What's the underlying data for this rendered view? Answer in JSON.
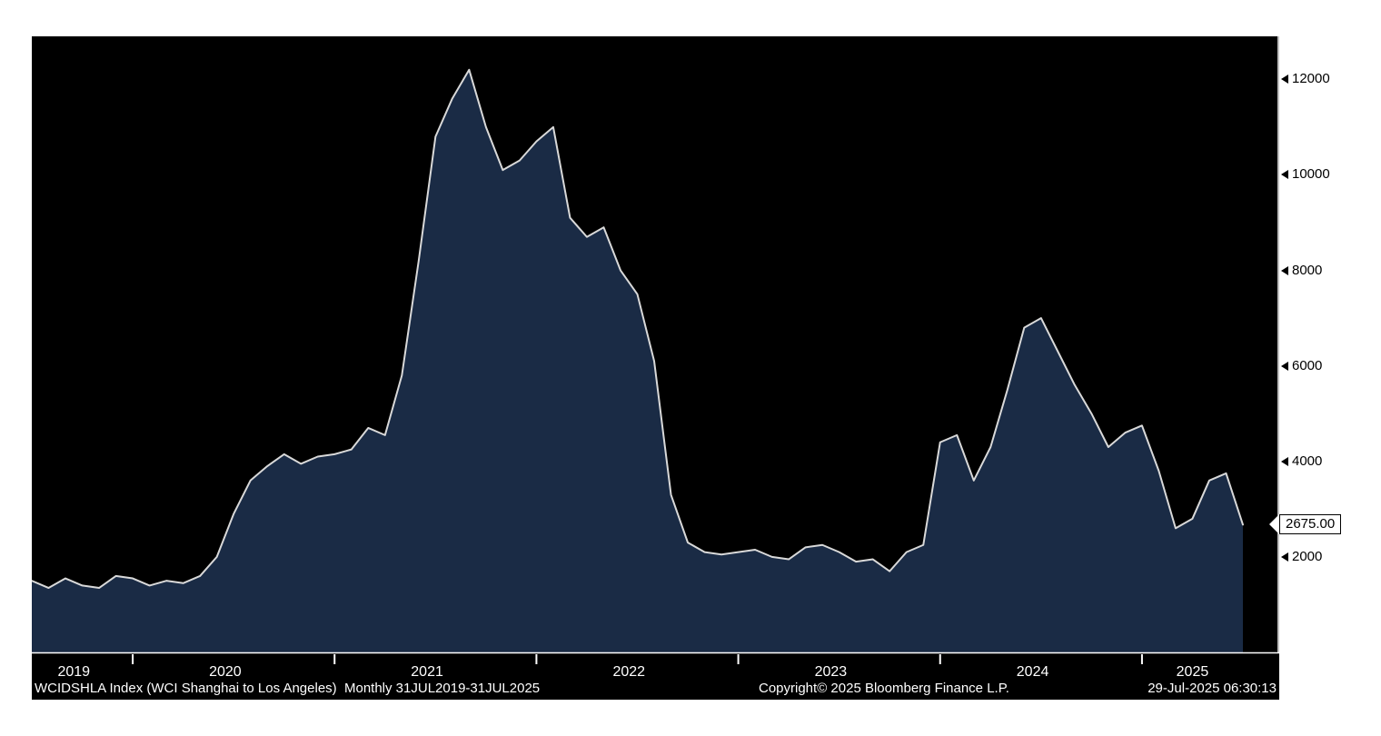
{
  "page": {
    "background": "#ffffff"
  },
  "footer": {
    "left": "WCIDSHLA Index (WCI Shanghai to Los Angeles)  Monthly 31JUL2019-31JUL2025",
    "center": "Copyright© 2025 Bloomberg Finance L.P.",
    "right": "29-Jul-2025 06:30:13"
  },
  "chart_data": {
    "type": "area",
    "title": "WCIDSHLA Index (WCI Shanghai to Los Angeles)",
    "periodicity": "Monthly",
    "date_range": "31JUL2019-31JUL2025",
    "legend": "none",
    "grid": "off",
    "ylim": [
      0,
      12900
    ],
    "y_ticks": [
      2000,
      4000,
      6000,
      8000,
      10000,
      12000
    ],
    "x_tick_years": [
      "2019",
      "2020",
      "2021",
      "2022",
      "2023",
      "2024",
      "2025"
    ],
    "last_value": 2675,
    "last_value_label": "2675.00",
    "x": [
      "2019-07",
      "2019-08",
      "2019-09",
      "2019-10",
      "2019-11",
      "2019-12",
      "2020-01",
      "2020-02",
      "2020-03",
      "2020-04",
      "2020-05",
      "2020-06",
      "2020-07",
      "2020-08",
      "2020-09",
      "2020-10",
      "2020-11",
      "2020-12",
      "2021-01",
      "2021-02",
      "2021-03",
      "2021-04",
      "2021-05",
      "2021-06",
      "2021-07",
      "2021-08",
      "2021-09",
      "2021-10",
      "2021-11",
      "2021-12",
      "2022-01",
      "2022-02",
      "2022-03",
      "2022-04",
      "2022-05",
      "2022-06",
      "2022-07",
      "2022-08",
      "2022-09",
      "2022-10",
      "2022-11",
      "2022-12",
      "2023-01",
      "2023-02",
      "2023-03",
      "2023-04",
      "2023-05",
      "2023-06",
      "2023-07",
      "2023-08",
      "2023-09",
      "2023-10",
      "2023-11",
      "2023-12",
      "2024-01",
      "2024-02",
      "2024-03",
      "2024-04",
      "2024-05",
      "2024-06",
      "2024-07",
      "2024-08",
      "2024-09",
      "2024-10",
      "2024-11",
      "2024-12",
      "2025-01",
      "2025-02",
      "2025-03",
      "2025-04",
      "2025-05",
      "2025-06",
      "2025-07"
    ],
    "values": [
      1500,
      1350,
      1550,
      1400,
      1350,
      1600,
      1550,
      1400,
      1500,
      1450,
      1600,
      2000,
      2900,
      3600,
      3900,
      4150,
      3950,
      4100,
      4150,
      4250,
      4700,
      4550,
      5800,
      8200,
      10800,
      11600,
      12200,
      11000,
      10100,
      10300,
      10700,
      11000,
      9100,
      8700,
      8900,
      8000,
      7500,
      6100,
      3300,
      2300,
      2100,
      2050,
      2100,
      2150,
      2000,
      1950,
      2200,
      2250,
      2100,
      1900,
      1950,
      1700,
      2100,
      2250,
      4400,
      4550,
      3600,
      4300,
      5500,
      6800,
      7000,
      6300,
      5600,
      5000,
      4300,
      4600,
      4750,
      3800,
      2600,
      2800,
      3600,
      3750,
      2675
    ],
    "colors": {
      "page_bg": "#ffffff",
      "plot_bg": "#000000",
      "area_fill": "#1a2b45",
      "line": "#d9d9d9",
      "axis": "#ffffff",
      "axis_label_text": "#000000",
      "year_label_text": "#ffffff",
      "footer_text": "#ffffff",
      "marker_bg": "#ffffff",
      "marker_text": "#000000"
    }
  }
}
